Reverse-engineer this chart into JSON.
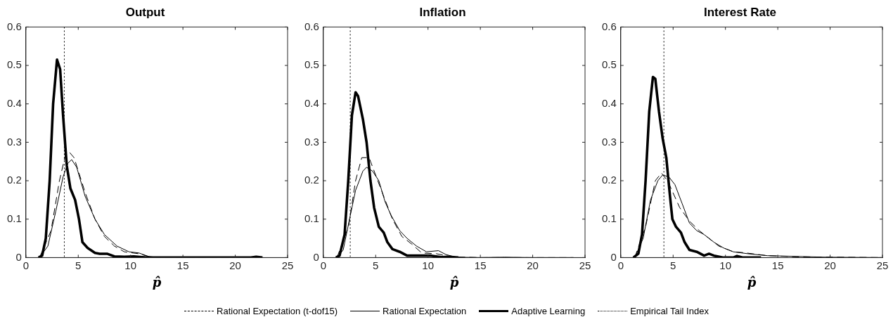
{
  "chart_data": [
    {
      "type": "line",
      "title": "Output",
      "xlabel": "p̂",
      "xlim": [
        0,
        25
      ],
      "xticks": [
        0,
        5,
        10,
        15,
        20,
        25
      ],
      "ylim": [
        0,
        0.6
      ],
      "yticks": [
        0,
        0.1,
        0.2,
        0.3,
        0.4,
        0.5,
        0.6
      ],
      "grid": false,
      "legend": "bottom",
      "marker": "none",
      "series": [
        {
          "name": "Rational Expectation (t-dof15)",
          "color": "#000000",
          "line_style": "dashed",
          "x": [
            1.3,
            2.4,
            3.2,
            3.8,
            4.13,
            4.6,
            5.65,
            6.6,
            7.5,
            8.45,
            9.4,
            10.8,
            11.7,
            12.65,
            22
          ],
          "values": [
            0,
            0.07,
            0.2,
            0.27,
            0.275,
            0.26,
            0.17,
            0.1,
            0.055,
            0.03,
            0.015,
            0.01,
            0.003,
            0,
            0
          ]
        },
        {
          "name": "Rational Expectation",
          "color": "#000000",
          "line_style": "solid",
          "x": [
            1.3,
            2.1,
            2.85,
            3.55,
            4.0,
            4.37,
            4.85,
            5.65,
            6.6,
            7.5,
            8.7,
            9.85,
            10.8,
            11.7,
            12.65,
            22.6
          ],
          "values": [
            0,
            0.03,
            0.12,
            0.21,
            0.245,
            0.255,
            0.235,
            0.16,
            0.1,
            0.06,
            0.03,
            0.015,
            0.012,
            0.003,
            0,
            0
          ]
        },
        {
          "name": "Adaptive Learning",
          "color": "#000000",
          "line_style": "solid",
          "x": [
            1.2,
            1.55,
            1.9,
            2.27,
            2.6,
            2.97,
            3.27,
            3.55,
            3.9,
            4.25,
            4.7,
            5.07,
            5.4,
            5.9,
            6.6,
            7.05,
            7.75,
            8.45,
            9.4,
            10.3,
            11.5,
            21.5,
            22,
            22.6
          ],
          "values": [
            0,
            0.005,
            0.05,
            0.2,
            0.4,
            0.515,
            0.49,
            0.37,
            0.24,
            0.18,
            0.15,
            0.1,
            0.04,
            0.025,
            0.012,
            0.01,
            0.01,
            0.003,
            0.002,
            0.003,
            0,
            0,
            0.002,
            0
          ]
        }
      ],
      "ref_lines": [
        {
          "axis": "x",
          "value": 3.67,
          "label": "Empirical Tail Index",
          "line_style": "dotted",
          "color": "#000000"
        }
      ]
    },
    {
      "type": "line",
      "title": "Inflation",
      "xlabel": "p̂",
      "xlim": [
        0,
        25
      ],
      "xticks": [
        0,
        5,
        10,
        15,
        20,
        25
      ],
      "ylim": [
        0,
        0.6
      ],
      "yticks": [
        0,
        0.1,
        0.2,
        0.3,
        0.4,
        0.5,
        0.6
      ],
      "grid": false,
      "legend": false,
      "marker": "none",
      "series": [
        {
          "color": "#000000",
          "line_style": "dashed",
          "x": [
            1.3,
            2.4,
            3.08,
            3.67,
            4.37,
            5.2,
            6.6,
            7.5,
            8.45,
            9.4,
            10.8,
            12.2,
            15,
            23.9
          ],
          "values": [
            0,
            0.08,
            0.2,
            0.26,
            0.26,
            0.2,
            0.1,
            0.055,
            0.035,
            0.012,
            0.01,
            0.002,
            0,
            0
          ]
        },
        {
          "color": "#000000",
          "line_style": "solid",
          "x": [
            1.3,
            1.9,
            2.5,
            3.08,
            3.78,
            4.13,
            4.7,
            5.3,
            5.9,
            6.47,
            7.3,
            8.0,
            8.9,
            9.85,
            11.0,
            11.7,
            12.65,
            15,
            17.3,
            19.7,
            23.9
          ],
          "values": [
            0,
            0.02,
            0.1,
            0.175,
            0.225,
            0.235,
            0.225,
            0.2,
            0.145,
            0.11,
            0.07,
            0.05,
            0.03,
            0.015,
            0.018,
            0.008,
            0.001,
            0,
            0.001,
            0,
            0
          ]
        },
        {
          "color": "#000000",
          "line_style": "solid",
          "x": [
            1.2,
            1.55,
            2.03,
            2.38,
            2.73,
            3.08,
            3.32,
            3.78,
            4.13,
            4.5,
            4.85,
            5.3,
            5.77,
            6.12,
            6.6,
            7.3,
            8.0,
            8.9,
            10.3,
            11.25,
            12.0,
            12.9
          ],
          "values": [
            0,
            0.005,
            0.06,
            0.2,
            0.37,
            0.43,
            0.42,
            0.36,
            0.3,
            0.2,
            0.13,
            0.08,
            0.065,
            0.04,
            0.022,
            0.015,
            0.005,
            0.005,
            0.005,
            0.001,
            0.002,
            0
          ]
        }
      ],
      "ref_lines": [
        {
          "axis": "x",
          "value": 2.57,
          "line_style": "dotted",
          "color": "#000000"
        }
      ]
    },
    {
      "type": "line",
      "title": "Interest Rate",
      "xlabel": "p̂",
      "xlim": [
        0,
        25
      ],
      "xticks": [
        0,
        5,
        10,
        15,
        20,
        25
      ],
      "ylim": [
        0,
        0.6
      ],
      "yticks": [
        0,
        0.1,
        0.2,
        0.3,
        0.4,
        0.5,
        0.6
      ],
      "grid": false,
      "legend": false,
      "marker": "none",
      "series": [
        {
          "color": "#000000",
          "line_style": "dashed",
          "x": [
            1.33,
            2.37,
            3.3,
            3.88,
            4.47,
            5.63,
            6.56,
            7.5,
            8.43,
            9.36,
            10.75,
            11.7,
            14,
            16.8,
            25
          ],
          "values": [
            0,
            0.08,
            0.2,
            0.22,
            0.2,
            0.13,
            0.095,
            0.07,
            0.05,
            0.03,
            0.015,
            0.013,
            0.005,
            0.002,
            0
          ]
        },
        {
          "color": "#000000",
          "line_style": "solid",
          "x": [
            1.33,
            2.14,
            2.84,
            3.54,
            4.0,
            4.59,
            5.17,
            5.87,
            6.56,
            7.26,
            7.96,
            8.9,
            9.82,
            10.75,
            12.15,
            14.0,
            16.8,
            19.6,
            25
          ],
          "values": [
            0,
            0.05,
            0.15,
            0.2,
            0.215,
            0.21,
            0.19,
            0.14,
            0.09,
            0.07,
            0.06,
            0.04,
            0.025,
            0.015,
            0.01,
            0.005,
            0.003,
            0.001,
            0
          ]
        },
        {
          "color": "#000000",
          "line_style": "solid",
          "x": [
            1.2,
            1.68,
            2.03,
            2.37,
            2.72,
            3.07,
            3.3,
            3.65,
            4.0,
            4.35,
            4.7,
            4.93,
            5.28,
            5.75,
            6.1,
            6.56,
            7.26,
            7.96,
            8.43,
            8.9,
            9.82,
            10.75,
            11.1,
            11.7,
            13.4
          ],
          "values": [
            0,
            0.01,
            0.06,
            0.2,
            0.38,
            0.47,
            0.465,
            0.38,
            0.31,
            0.26,
            0.16,
            0.1,
            0.08,
            0.065,
            0.04,
            0.02,
            0.015,
            0.005,
            0.01,
            0.005,
            0,
            0,
            0.004,
            0,
            0
          ]
        }
      ],
      "ref_lines": [
        {
          "axis": "x",
          "value": 4.12,
          "line_style": "dotted",
          "color": "#000000"
        }
      ]
    }
  ]
}
